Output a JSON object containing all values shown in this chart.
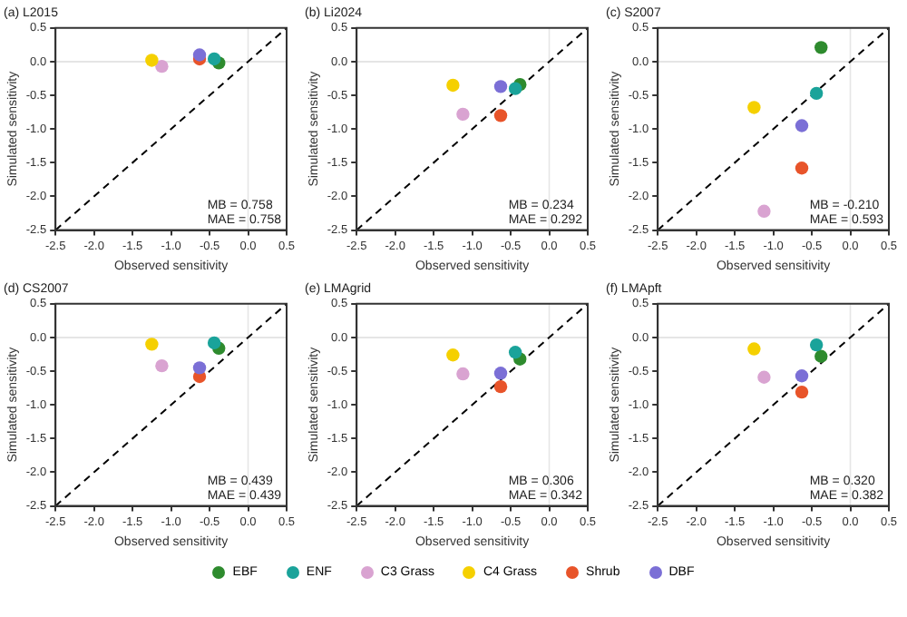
{
  "chart_data": [
    {
      "type": "scatter",
      "title": "(a) L2015",
      "xlabel": "Observed sensitivity",
      "ylabel": "Simulated sensitivity",
      "xlim": [
        -2.5,
        0.5
      ],
      "ylim": [
        -2.5,
        0.5
      ],
      "xticks": [
        {
          "value": -2.5,
          "label": "-2.5"
        },
        {
          "value": -2,
          "label": "-2.0"
        },
        {
          "value": -1.5,
          "label": "-1.5"
        },
        {
          "value": -1,
          "label": "-1.0"
        },
        {
          "value": -0.5,
          "label": "-0.5"
        },
        {
          "value": 0,
          "label": "0.0"
        },
        {
          "value": 0.5,
          "label": "0.5"
        }
      ],
      "yticks": [
        {
          "value": -2.5,
          "label": "-2.5"
        },
        {
          "value": -2,
          "label": "-2.0"
        },
        {
          "value": -1.5,
          "label": "-1.5"
        },
        {
          "value": -1,
          "label": "-1.0"
        },
        {
          "value": -0.5,
          "label": "-0.5"
        },
        {
          "value": 0,
          "label": "0.0"
        },
        {
          "value": 0.5,
          "label": "0.5"
        }
      ],
      "grid": false,
      "legend": "bottom",
      "marker": "circle",
      "ref_lines": [
        {
          "axis": "x",
          "value": 0,
          "color": "#e6e6e6"
        },
        {
          "axis": "y",
          "value": 0,
          "color": "#dcdcdc"
        }
      ],
      "annotations": [
        "MB = 0.758",
        "MAE = 0.758"
      ],
      "series": [
        {
          "type": "line",
          "color": "#000000",
          "line_style": "dashed",
          "marker": "none",
          "x": [
            -2.5,
            0.5
          ],
          "values": [
            -2.5,
            0.5
          ]
        },
        {
          "name": "EBF",
          "color": "#2e8b2e",
          "x": [
            -0.38
          ],
          "values": [
            -0.02
          ]
        },
        {
          "name": "ENF",
          "color": "#1aa39a",
          "x": [
            -0.44
          ],
          "values": [
            0.04
          ]
        },
        {
          "name": "C3 Grass",
          "color": "#d9a3d1",
          "x": [
            -1.12
          ],
          "values": [
            -0.07
          ]
        },
        {
          "name": "C4 Grass",
          "color": "#f5d000",
          "x": [
            -1.25
          ],
          "values": [
            0.02
          ]
        },
        {
          "name": "Shrub",
          "color": "#e8542a",
          "x": [
            -0.63
          ],
          "values": [
            0.04
          ]
        },
        {
          "name": "DBF",
          "color": "#7b6fd6",
          "x": [
            -0.63
          ],
          "values": [
            0.1
          ]
        }
      ]
    },
    {
      "type": "scatter",
      "title": "(b) Li2024",
      "xlabel": "Observed sensitivity",
      "ylabel": "Simulated sensitivity",
      "xlim": [
        -2.5,
        0.5
      ],
      "ylim": [
        -2.5,
        0.5
      ],
      "xticks": [
        {
          "value": -2.5,
          "label": "-2.5"
        },
        {
          "value": -2,
          "label": "-2.0"
        },
        {
          "value": -1.5,
          "label": "-1.5"
        },
        {
          "value": -1,
          "label": "-1.0"
        },
        {
          "value": -0.5,
          "label": "-0.5"
        },
        {
          "value": 0,
          "label": "0.0"
        },
        {
          "value": 0.5,
          "label": "0.5"
        }
      ],
      "yticks": [
        {
          "value": -2.5,
          "label": "-2.5"
        },
        {
          "value": -2,
          "label": "-2.0"
        },
        {
          "value": -1.5,
          "label": "-1.5"
        },
        {
          "value": -1,
          "label": "-1.0"
        },
        {
          "value": -0.5,
          "label": "-0.5"
        },
        {
          "value": 0,
          "label": "0.0"
        },
        {
          "value": 0.5,
          "label": "0.5"
        }
      ],
      "grid": false,
      "legend": "bottom",
      "marker": "circle",
      "ref_lines": [
        {
          "axis": "x",
          "value": 0,
          "color": "#e6e6e6"
        },
        {
          "axis": "y",
          "value": 0,
          "color": "#dcdcdc"
        }
      ],
      "annotations": [
        "MB = 0.234",
        "MAE = 0.292"
      ],
      "series": [
        {
          "type": "line",
          "color": "#000000",
          "line_style": "dashed",
          "marker": "none",
          "x": [
            -2.5,
            0.5
          ],
          "values": [
            -2.5,
            0.5
          ]
        },
        {
          "name": "EBF",
          "color": "#2e8b2e",
          "x": [
            -0.38
          ],
          "values": [
            -0.34
          ]
        },
        {
          "name": "ENF",
          "color": "#1aa39a",
          "x": [
            -0.44
          ],
          "values": [
            -0.4
          ]
        },
        {
          "name": "C3 Grass",
          "color": "#d9a3d1",
          "x": [
            -1.12
          ],
          "values": [
            -0.78
          ]
        },
        {
          "name": "C4 Grass",
          "color": "#f5d000",
          "x": [
            -1.25
          ],
          "values": [
            -0.35
          ]
        },
        {
          "name": "Shrub",
          "color": "#e8542a",
          "x": [
            -0.63
          ],
          "values": [
            -0.8
          ]
        },
        {
          "name": "DBF",
          "color": "#7b6fd6",
          "x": [
            -0.63
          ],
          "values": [
            -0.37
          ]
        }
      ]
    },
    {
      "type": "scatter",
      "title": "(c) S2007",
      "xlabel": "Observed sensitivity",
      "ylabel": "Simulated sensitivity",
      "xlim": [
        -2.5,
        0.5
      ],
      "ylim": [
        -2.5,
        0.5
      ],
      "xticks": [
        {
          "value": -2.5,
          "label": "-2.5"
        },
        {
          "value": -2,
          "label": "-2.0"
        },
        {
          "value": -1.5,
          "label": "-1.5"
        },
        {
          "value": -1,
          "label": "-1.0"
        },
        {
          "value": -0.5,
          "label": "-0.5"
        },
        {
          "value": 0,
          "label": "0.0"
        },
        {
          "value": 0.5,
          "label": "0.5"
        }
      ],
      "yticks": [
        {
          "value": -2.5,
          "label": "-2.5"
        },
        {
          "value": -2,
          "label": "-2.0"
        },
        {
          "value": -1.5,
          "label": "-1.5"
        },
        {
          "value": -1,
          "label": "-1.0"
        },
        {
          "value": -0.5,
          "label": "-0.5"
        },
        {
          "value": 0,
          "label": "0.0"
        },
        {
          "value": 0.5,
          "label": "0.5"
        }
      ],
      "grid": false,
      "legend": "bottom",
      "marker": "circle",
      "ref_lines": [
        {
          "axis": "x",
          "value": 0,
          "color": "#e6e6e6"
        },
        {
          "axis": "y",
          "value": 0,
          "color": "#dcdcdc"
        }
      ],
      "annotations": [
        "MB = -0.210",
        "MAE = 0.593"
      ],
      "series": [
        {
          "type": "line",
          "color": "#000000",
          "line_style": "dashed",
          "marker": "none",
          "x": [
            -2.5,
            0.5
          ],
          "values": [
            -2.5,
            0.5
          ]
        },
        {
          "name": "EBF",
          "color": "#2e8b2e",
          "x": [
            -0.38
          ],
          "values": [
            0.21
          ]
        },
        {
          "name": "ENF",
          "color": "#1aa39a",
          "x": [
            -0.44
          ],
          "values": [
            -0.47
          ]
        },
        {
          "name": "C3 Grass",
          "color": "#d9a3d1",
          "x": [
            -1.12
          ],
          "values": [
            -2.22
          ]
        },
        {
          "name": "C4 Grass",
          "color": "#f5d000",
          "x": [
            -1.25
          ],
          "values": [
            -0.68
          ]
        },
        {
          "name": "Shrub",
          "color": "#e8542a",
          "x": [
            -0.63
          ],
          "values": [
            -1.58
          ]
        },
        {
          "name": "DBF",
          "color": "#7b6fd6",
          "x": [
            -0.63
          ],
          "values": [
            -0.95
          ]
        }
      ]
    },
    {
      "type": "scatter",
      "title": "(d) CS2007",
      "xlabel": "Observed sensitivity",
      "ylabel": "Simulated sensitivity",
      "xlim": [
        -2.5,
        0.5
      ],
      "ylim": [
        -2.5,
        0.5
      ],
      "xticks": [
        {
          "value": -2.5,
          "label": "-2.5"
        },
        {
          "value": -2,
          "label": "-2.0"
        },
        {
          "value": -1.5,
          "label": "-1.5"
        },
        {
          "value": -1,
          "label": "-1.0"
        },
        {
          "value": -0.5,
          "label": "-0.5"
        },
        {
          "value": 0,
          "label": "0.0"
        },
        {
          "value": 0.5,
          "label": "0.5"
        }
      ],
      "yticks": [
        {
          "value": -2.5,
          "label": "-2.5"
        },
        {
          "value": -2,
          "label": "-2.0"
        },
        {
          "value": -1.5,
          "label": "-1.5"
        },
        {
          "value": -1,
          "label": "-1.0"
        },
        {
          "value": -0.5,
          "label": "-0.5"
        },
        {
          "value": 0,
          "label": "0.0"
        },
        {
          "value": 0.5,
          "label": "0.5"
        }
      ],
      "grid": false,
      "legend": "bottom",
      "marker": "circle",
      "ref_lines": [
        {
          "axis": "x",
          "value": 0,
          "color": "#e6e6e6"
        },
        {
          "axis": "y",
          "value": 0,
          "color": "#dcdcdc"
        }
      ],
      "annotations": [
        "MB = 0.439",
        "MAE = 0.439"
      ],
      "series": [
        {
          "type": "line",
          "color": "#000000",
          "line_style": "dashed",
          "marker": "none",
          "x": [
            -2.5,
            0.5
          ],
          "values": [
            -2.5,
            0.5
          ]
        },
        {
          "name": "EBF",
          "color": "#2e8b2e",
          "x": [
            -0.38
          ],
          "values": [
            -0.16
          ]
        },
        {
          "name": "ENF",
          "color": "#1aa39a",
          "x": [
            -0.44
          ],
          "values": [
            -0.08
          ]
        },
        {
          "name": "C3 Grass",
          "color": "#d9a3d1",
          "x": [
            -1.12
          ],
          "values": [
            -0.42
          ]
        },
        {
          "name": "C4 Grass",
          "color": "#f5d000",
          "x": [
            -1.25
          ],
          "values": [
            -0.1
          ]
        },
        {
          "name": "Shrub",
          "color": "#e8542a",
          "x": [
            -0.63
          ],
          "values": [
            -0.58
          ]
        },
        {
          "name": "DBF",
          "color": "#7b6fd6",
          "x": [
            -0.63
          ],
          "values": [
            -0.45
          ]
        }
      ]
    },
    {
      "type": "scatter",
      "title": "(e) LMAgrid",
      "xlabel": "Observed sensitivity",
      "ylabel": "Simulated sensitivity",
      "xlim": [
        -2.5,
        0.5
      ],
      "ylim": [
        -2.5,
        0.5
      ],
      "xticks": [
        {
          "value": -2.5,
          "label": "-2.5"
        },
        {
          "value": -2,
          "label": "-2.0"
        },
        {
          "value": -1.5,
          "label": "-1.5"
        },
        {
          "value": -1,
          "label": "-1.0"
        },
        {
          "value": -0.5,
          "label": "-0.5"
        },
        {
          "value": 0,
          "label": "0.0"
        },
        {
          "value": 0.5,
          "label": "0.5"
        }
      ],
      "yticks": [
        {
          "value": -2.5,
          "label": "-2.5"
        },
        {
          "value": -2,
          "label": "-2.0"
        },
        {
          "value": -1.5,
          "label": "-1.5"
        },
        {
          "value": -1,
          "label": "-1.0"
        },
        {
          "value": -0.5,
          "label": "-0.5"
        },
        {
          "value": 0,
          "label": "0.0"
        },
        {
          "value": 0.5,
          "label": "0.5"
        }
      ],
      "grid": false,
      "legend": "bottom",
      "marker": "circle",
      "ref_lines": [
        {
          "axis": "x",
          "value": 0,
          "color": "#e6e6e6"
        },
        {
          "axis": "y",
          "value": 0,
          "color": "#dcdcdc"
        }
      ],
      "annotations": [
        "MB = 0.306",
        "MAE = 0.342"
      ],
      "series": [
        {
          "type": "line",
          "color": "#000000",
          "line_style": "dashed",
          "marker": "none",
          "x": [
            -2.5,
            0.5
          ],
          "values": [
            -2.5,
            0.5
          ]
        },
        {
          "name": "EBF",
          "color": "#2e8b2e",
          "x": [
            -0.38
          ],
          "values": [
            -0.32
          ]
        },
        {
          "name": "ENF",
          "color": "#1aa39a",
          "x": [
            -0.44
          ],
          "values": [
            -0.22
          ]
        },
        {
          "name": "C3 Grass",
          "color": "#d9a3d1",
          "x": [
            -1.12
          ],
          "values": [
            -0.54
          ]
        },
        {
          "name": "C4 Grass",
          "color": "#f5d000",
          "x": [
            -1.25
          ],
          "values": [
            -0.26
          ]
        },
        {
          "name": "Shrub",
          "color": "#e8542a",
          "x": [
            -0.63
          ],
          "values": [
            -0.73
          ]
        },
        {
          "name": "DBF",
          "color": "#7b6fd6",
          "x": [
            -0.63
          ],
          "values": [
            -0.53
          ]
        }
      ]
    },
    {
      "type": "scatter",
      "title": "(f) LMApft",
      "xlabel": "Observed sensitivity",
      "ylabel": "Simulated sensitivity",
      "xlim": [
        -2.5,
        0.5
      ],
      "ylim": [
        -2.5,
        0.5
      ],
      "xticks": [
        {
          "value": -2.5,
          "label": "-2.5"
        },
        {
          "value": -2,
          "label": "-2.0"
        },
        {
          "value": -1.5,
          "label": "-1.5"
        },
        {
          "value": -1,
          "label": "-1.0"
        },
        {
          "value": -0.5,
          "label": "-0.5"
        },
        {
          "value": 0,
          "label": "0.0"
        },
        {
          "value": 0.5,
          "label": "0.5"
        }
      ],
      "yticks": [
        {
          "value": -2.5,
          "label": "-2.5"
        },
        {
          "value": -2,
          "label": "-2.0"
        },
        {
          "value": -1.5,
          "label": "-1.5"
        },
        {
          "value": -1,
          "label": "-1.0"
        },
        {
          "value": -0.5,
          "label": "-0.5"
        },
        {
          "value": 0,
          "label": "0.0"
        },
        {
          "value": 0.5,
          "label": "0.5"
        }
      ],
      "grid": false,
      "legend": "bottom",
      "marker": "circle",
      "ref_lines": [
        {
          "axis": "x",
          "value": 0,
          "color": "#e6e6e6"
        },
        {
          "axis": "y",
          "value": 0,
          "color": "#dcdcdc"
        }
      ],
      "annotations": [
        "MB = 0.320",
        "MAE = 0.382"
      ],
      "series": [
        {
          "type": "line",
          "color": "#000000",
          "line_style": "dashed",
          "marker": "none",
          "x": [
            -2.5,
            0.5
          ],
          "values": [
            -2.5,
            0.5
          ]
        },
        {
          "name": "EBF",
          "color": "#2e8b2e",
          "x": [
            -0.38
          ],
          "values": [
            -0.28
          ]
        },
        {
          "name": "ENF",
          "color": "#1aa39a",
          "x": [
            -0.44
          ],
          "values": [
            -0.11
          ]
        },
        {
          "name": "C3 Grass",
          "color": "#d9a3d1",
          "x": [
            -1.12
          ],
          "values": [
            -0.59
          ]
        },
        {
          "name": "C4 Grass",
          "color": "#f5d000",
          "x": [
            -1.25
          ],
          "values": [
            -0.17
          ]
        },
        {
          "name": "Shrub",
          "color": "#e8542a",
          "x": [
            -0.63
          ],
          "values": [
            -0.81
          ]
        },
        {
          "name": "DBF",
          "color": "#7b6fd6",
          "x": [
            -0.63
          ],
          "values": [
            -0.57
          ]
        }
      ]
    }
  ]
}
